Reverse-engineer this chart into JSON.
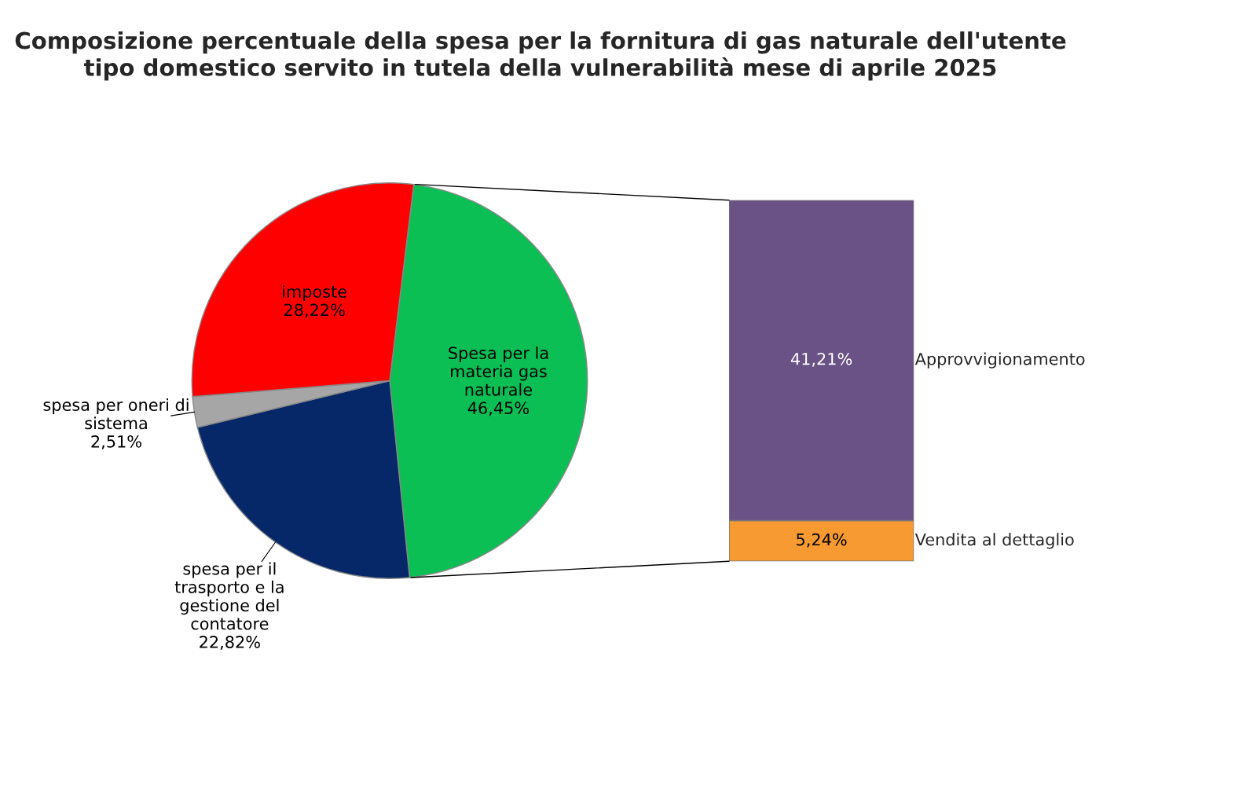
{
  "chart_data": [
    {
      "type": "pie",
      "title": "Composizione percentuale della spesa per la fornitura di gas naturale dell'utente tipo domestico servito in tutela della vulnerabilità mese di aprile 2025",
      "categories": [
        "Spesa per la materia gas naturale",
        "spesa per il trasporto e la gestione del contatore",
        "spesa per oneri di sistema",
        "imposte"
      ],
      "values": [
        46.45,
        22.82,
        2.51,
        28.22
      ],
      "value_labels": [
        "46,45%",
        "22,82%",
        "2,51%",
        "28,22%"
      ],
      "colors": [
        "#0bbf55",
        "#062868",
        "#a6a6a6",
        "#ff0000"
      ]
    },
    {
      "type": "bar",
      "stacked": true,
      "categories": [
        null
      ],
      "tick_labels": false,
      "series": [
        {
          "name": "Vendita al dettaglio",
          "color": "#f79a32",
          "values": [
            5.24
          ],
          "value_labels": [
            "5,24%"
          ]
        },
        {
          "name": "Approvvigionamento",
          "color": "#6a5286",
          "values": [
            41.21
          ],
          "value_labels": [
            "41,21%"
          ]
        }
      ]
    }
  ]
}
